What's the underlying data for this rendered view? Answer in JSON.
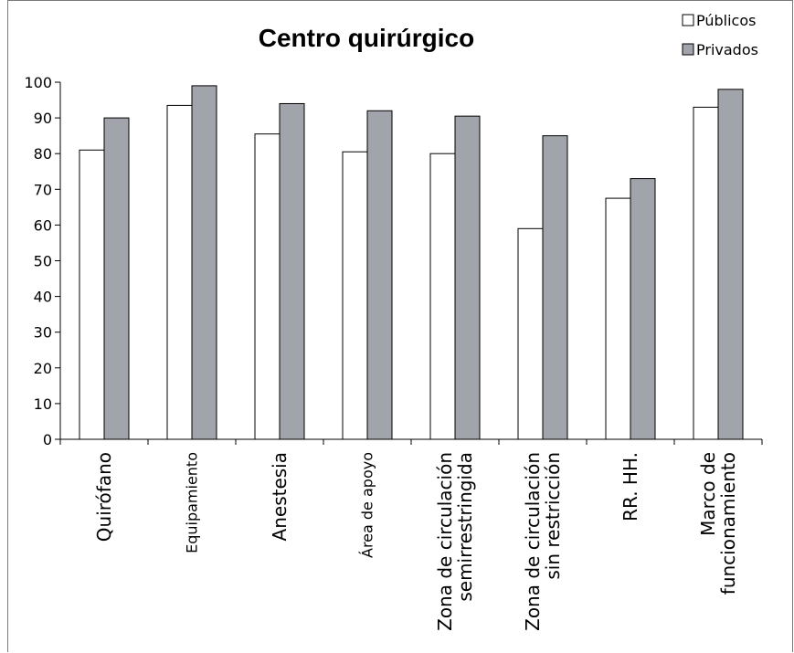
{
  "chart_data": {
    "type": "bar",
    "title": "Centro quirúrgico",
    "xlabel": "",
    "ylabel": "",
    "ylim": [
      0,
      100
    ],
    "yticks": [
      0,
      10,
      20,
      30,
      40,
      50,
      60,
      70,
      80,
      90,
      100
    ],
    "categories": [
      [
        "Quirófano"
      ],
      [
        "Equipamiento"
      ],
      [
        "Anestesia"
      ],
      [
        "Área de apoyo"
      ],
      [
        "Zona de circulación",
        "semirrestringida"
      ],
      [
        "Zona de circulación",
        "sin restricción"
      ],
      [
        "RR. HH."
      ],
      [
        "Marco de",
        "funcionamiento"
      ]
    ],
    "series": [
      {
        "name": "Públicos",
        "color": "#ffffff",
        "values": [
          81,
          93.5,
          85.5,
          80.5,
          80,
          59,
          67.5,
          93
        ]
      },
      {
        "name": "Privados",
        "color": "#a1a4ab",
        "values": [
          90,
          99,
          94,
          92,
          90.5,
          85,
          73,
          98
        ]
      }
    ],
    "legend_position": "top-right",
    "grid": false
  }
}
